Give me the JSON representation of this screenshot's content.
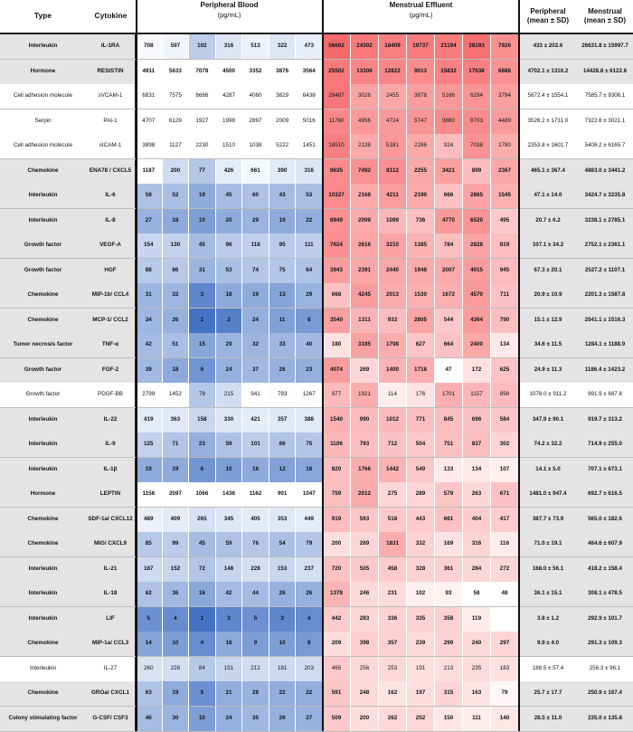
{
  "headers": {
    "type": "Type",
    "cytokine": "Cytokine",
    "peripheral_blood": "Peripheral Blood",
    "pb_unit": "(pg/mL)",
    "menstrual_effluent": "Menstrual Effluent",
    "me_unit": "(pg/mL)",
    "peripheral_mean": "Peripheral",
    "peripheral_mean_sub": "(mean ± SD)",
    "menstrual_mean": "Menstrual",
    "menstrual_mean_sub": "(mean ± SD)"
  },
  "colors": {
    "gray_row": "#e4e4e4",
    "blue_scale": "#4472c4",
    "red_scale": "#f8696b"
  },
  "rows": [
    {
      "type": "Interleukin",
      "cytokine": "IL-1RA",
      "bold": true,
      "gray": true,
      "pb": [
        "708",
        "597",
        "102",
        "316",
        "513",
        "322",
        "473"
      ],
      "me": [
        "56662",
        "24302",
        "18409",
        "19737",
        "21194",
        "38193",
        "7926"
      ],
      "pm": "433 ± 202.6",
      "mm": "26631.8 ± 15997.7"
    },
    {
      "type": "Hormone",
      "cytokine": "RESISTIN",
      "bold": true,
      "gray": true,
      "pb": [
        "4911",
        "5633",
        "7078",
        "4500",
        "3352",
        "3876",
        "3564"
      ],
      "me": [
        "25502",
        "13306",
        "12822",
        "9013",
        "15832",
        "17638",
        "6888"
      ],
      "pm": "4702.1 ± 1316.2",
      "mm": "14428.8 ± 6122.6"
    },
    {
      "type": "Cell adhesion molecule",
      "cytokine": "sVCAM-1",
      "bold": false,
      "gray": false,
      "pb": [
        "6831",
        "7575",
        "6686",
        "4287",
        "4060",
        "3829",
        "6438"
      ],
      "me": [
        "28487",
        "3026",
        "2455",
        "3878",
        "5166",
        "6294",
        "3794"
      ],
      "pm": "5672.4 ± 1554.1",
      "mm": "7585.7 ± 9306.1"
    },
    {
      "type": "Serpin",
      "cytokine": "PAI-1",
      "bold": false,
      "gray": false,
      "pb": [
        "4707",
        "6129",
        "1927",
        "1998",
        "2897",
        "2009",
        "5016"
      ],
      "me": [
        "11760",
        "4956",
        "4724",
        "5747",
        "9880",
        "9703",
        "4489"
      ],
      "pm": "3526.2 ± 1731.0",
      "mm": "7322.6 ± 3021.1"
    },
    {
      "type": "Cell adhesion molecule",
      "cytokine": "sICAM-1",
      "bold": false,
      "gray": false,
      "pb": [
        "3898",
        "1127",
        "2230",
        "1510",
        "1038",
        "5222",
        "1451"
      ],
      "me": [
        "18510",
        "2138",
        "5181",
        "2286",
        "924",
        "7038",
        "1780"
      ],
      "pm": "2353.8 ± 1601.7",
      "mm": "5408.2 ± 6165.7"
    },
    {
      "type": "Chemokine",
      "cytokine": "ENA78 / CXCL5",
      "bold": true,
      "gray": true,
      "pb": [
        "1187",
        "200",
        "77",
        "426",
        "661",
        "390",
        "316"
      ],
      "me": [
        "9635",
        "7492",
        "8112",
        "2255",
        "3421",
        "899",
        "2367"
      ],
      "pm": "465.1 ± 367.4",
      "mm": "4883.0 ± 3441.2"
    },
    {
      "type": "Interleukin",
      "cytokine": "IL-6",
      "bold": true,
      "gray": true,
      "pb": [
        "59",
        "52",
        "19",
        "45",
        "60",
        "43",
        "53"
      ],
      "me": [
        "10327",
        "2168",
        "4211",
        "2190",
        "666",
        "2865",
        "1545"
      ],
      "pm": "47.1 ± 14.0",
      "mm": "3424.7 ± 3235.8"
    },
    {
      "type": "Interleukin",
      "cytokine": "IL-8",
      "bold": true,
      "gray": true,
      "pb": [
        "27",
        "18",
        "10",
        "20",
        "29",
        "19",
        "22"
      ],
      "me": [
        "6949",
        "2099",
        "1099",
        "736",
        "4770",
        "6520",
        "495"
      ],
      "pm": "20.7 ± 6.2",
      "mm": "3238.1 ± 2785.1"
    },
    {
      "type": "Growth factor",
      "cytokine": "VEGF-A",
      "bold": true,
      "gray": true,
      "pb": [
        "154",
        "130",
        "45",
        "96",
        "118",
        "95",
        "111"
      ],
      "me": [
        "7624",
        "2616",
        "3210",
        "1385",
        "784",
        "2828",
        "819"
      ],
      "pm": "107.1 ± 34.2",
      "mm": "2752.1 ± 2361.1"
    },
    {
      "type": "Growth factor",
      "cytokine": "HGF",
      "bold": true,
      "gray": true,
      "pb": [
        "88",
        "86",
        "31",
        "53",
        "74",
        "75",
        "64"
      ],
      "me": [
        "3943",
        "2391",
        "2440",
        "1948",
        "2007",
        "4015",
        "945"
      ],
      "pm": "67.3 ± 20.1",
      "mm": "2527.2 ± 1107.1"
    },
    {
      "type": "Chemokine",
      "cytokine": "MIP-1b/ CCL4",
      "bold": true,
      "gray": true,
      "pb": [
        "31",
        "32",
        "3",
        "18",
        "19",
        "13",
        "29"
      ],
      "me": [
        "668",
        "4245",
        "2013",
        "1530",
        "1672",
        "4570",
        "711"
      ],
      "pm": "20.9 ± 10.9",
      "mm": "2201.3 ± 1587.8"
    },
    {
      "type": "Chemokine",
      "cytokine": "MCP-1/ CCL2",
      "bold": true,
      "gray": true,
      "pb": [
        "34",
        "26",
        "1",
        "2",
        "24",
        "11",
        "8"
      ],
      "me": [
        "3540",
        "1311",
        "933",
        "2805",
        "544",
        "4364",
        "790"
      ],
      "pm": "15.1 ± 12.9",
      "mm": "2041.1 ± 1516.3"
    },
    {
      "type": "Tumor necrosis factor",
      "cytokine": "TNF-α",
      "bold": true,
      "gray": true,
      "pb": [
        "42",
        "51",
        "15",
        "29",
        "32",
        "33",
        "40"
      ],
      "me": [
        "180",
        "3185",
        "1798",
        "627",
        "664",
        "2400",
        "134"
      ],
      "pm": "34.6 ± 11.5",
      "mm": "1284.1 ± 1188.9"
    },
    {
      "type": "Growth factor",
      "cytokine": "FGF-2",
      "bold": true,
      "gray": true,
      "pb": [
        "39",
        "18",
        "6",
        "24",
        "37",
        "26",
        "23"
      ],
      "me": [
        "4074",
        "269",
        "1400",
        "1718",
        "47",
        "172",
        "625"
      ],
      "pm": "24.9 ± 11.3",
      "mm": "1186.4 ± 1423.2"
    },
    {
      "type": "Growth factor",
      "cytokine": "PDGF-BB",
      "bold": false,
      "gray": false,
      "pb": [
        "2799",
        "1452",
        "78",
        "215",
        "941",
        "793",
        "1267"
      ],
      "me": [
        "977",
        "1921",
        "114",
        "176",
        "1701",
        "1157",
        "898"
      ],
      "pm": "1078.0 ± 911.2",
      "mm": "991.9 ± 687.8"
    },
    {
      "type": "Interleukin",
      "cytokine": "IL-22",
      "bold": true,
      "gray": true,
      "pb": [
        "419",
        "363",
        "158",
        "330",
        "421",
        "357",
        "388"
      ],
      "me": [
        "1540",
        "990",
        "1012",
        "771",
        "845",
        "696",
        "584"
      ],
      "pm": "347.9 ± 90.1",
      "mm": "919.7 ± 313.2"
    },
    {
      "type": "Interleukin",
      "cytokine": "IL-9",
      "bold": true,
      "gray": true,
      "pb": [
        "125",
        "71",
        "23",
        "59",
        "101",
        "66",
        "75"
      ],
      "me": [
        "1106",
        "793",
        "712",
        "504",
        "751",
        "837",
        "302"
      ],
      "pm": "74.2 ± 32.2",
      "mm": "714.9 ± 255.0"
    },
    {
      "type": "Interleukin",
      "cytokine": "IL-1β",
      "bold": true,
      "gray": true,
      "pb": [
        "19",
        "19",
        "6",
        "10",
        "18",
        "12",
        "16"
      ],
      "me": [
        "820",
        "1766",
        "1442",
        "549",
        "133",
        "134",
        "107"
      ],
      "pm": "14.1 ± 5.0",
      "mm": "707.1 ± 673.1"
    },
    {
      "type": "Hormone",
      "cytokine": "LEPTIN",
      "bold": true,
      "gray": true,
      "pb": [
        "1156",
        "3597",
        "1066",
        "1436",
        "1162",
        "901",
        "1047"
      ],
      "me": [
        "759",
        "2012",
        "275",
        "289",
        "579",
        "263",
        "671"
      ],
      "pm": "1481.0 ± 947.4",
      "mm": "692.7 ± 616.5"
    },
    {
      "type": "Chemokine",
      "cytokine": "SDF-1a/ CXCL12",
      "bold": true,
      "gray": true,
      "pb": [
        "489",
        "409",
        "265",
        "345",
        "405",
        "353",
        "449"
      ],
      "me": [
        "919",
        "593",
        "518",
        "443",
        "661",
        "404",
        "417"
      ],
      "pm": "387.7 ± 73.9",
      "mm": "565.0 ± 182.6"
    },
    {
      "type": "Chemokine",
      "cytokine": "MIG/ CXCL9",
      "bold": true,
      "gray": true,
      "pb": [
        "85",
        "99",
        "45",
        "59",
        "76",
        "54",
        "79"
      ],
      "me": [
        "200",
        "289",
        "1831",
        "332",
        "169",
        "316",
        "116"
      ],
      "pm": "71.0 ± 19.1",
      "mm": "464.6 ± 607.9"
    },
    {
      "type": "Interleukin",
      "cytokine": "IL-21",
      "bold": true,
      "gray": true,
      "pb": [
        "187",
        "152",
        "72",
        "146",
        "228",
        "153",
        "237"
      ],
      "me": [
        "720",
        "505",
        "458",
        "328",
        "361",
        "284",
        "272"
      ],
      "pm": "168.0 ± 56.1",
      "mm": "418.2 ± 158.4"
    },
    {
      "type": "Interleukin",
      "cytokine": "IL-18",
      "bold": true,
      "gray": true,
      "pb": [
        "62",
        "36",
        "16",
        "42",
        "44",
        "26",
        "26"
      ],
      "me": [
        "1378",
        "246",
        "231",
        "102",
        "93",
        "58",
        "48"
      ],
      "pm": "36.1 ± 15.1",
      "mm": "308.1 ± 478.5"
    },
    {
      "type": "Interleukin",
      "cytokine": "LIF",
      "bold": true,
      "gray": true,
      "pb": [
        "5",
        "4",
        "1",
        "3",
        "5",
        "3",
        "4"
      ],
      "me": [
        "442",
        "283",
        "336",
        "335",
        "358",
        "119",
        ""
      ],
      "pm": "3.8 ± 1.2",
      "mm": "292.9 ± 101.7"
    },
    {
      "type": "Chemokine",
      "cytokine": "MIP-1a/ CCL3",
      "bold": true,
      "gray": true,
      "pb": [
        "14",
        "10",
        "4",
        "18",
        "9",
        "10",
        "8"
      ],
      "me": [
        "209",
        "398",
        "357",
        "239",
        "299",
        "240",
        "297"
      ],
      "pm": "9.9 ± 4.0",
      "mm": "291.3 ± 109.3"
    },
    {
      "type": "Interleukin",
      "cytokine": "IL-27",
      "bold": false,
      "gray": false,
      "pb": [
        "260",
        "228",
        "84",
        "151",
        "212",
        "181",
        "203"
      ],
      "me": [
        "465",
        "256",
        "253",
        "191",
        "213",
        "235",
        "183"
      ],
      "pm": "188.5 ± 57.4",
      "mm": "256.3 ± 96.1"
    },
    {
      "type": "Chemokine",
      "cytokine": "GROa/ CXCL1",
      "bold": true,
      "gray": true,
      "pb": [
        "63",
        "19",
        "5",
        "21",
        "28",
        "22",
        "22"
      ],
      "me": [
        "591",
        "248",
        "162",
        "197",
        "315",
        "163",
        "79"
      ],
      "pm": "25.7 ± 17.7",
      "mm": "250.9 ± 167.4"
    },
    {
      "type": "Colony stimulating factor",
      "cytokine": "G-CSF/ CSF3",
      "bold": true,
      "gray": true,
      "pb": [
        "46",
        "30",
        "10",
        "24",
        "35",
        "26",
        "27"
      ],
      "me": [
        "509",
        "200",
        "262",
        "252",
        "150",
        "111",
        "140"
      ],
      "pm": "28.5 ± 11.0",
      "mm": "235.0 ± 135.8"
    }
  ]
}
